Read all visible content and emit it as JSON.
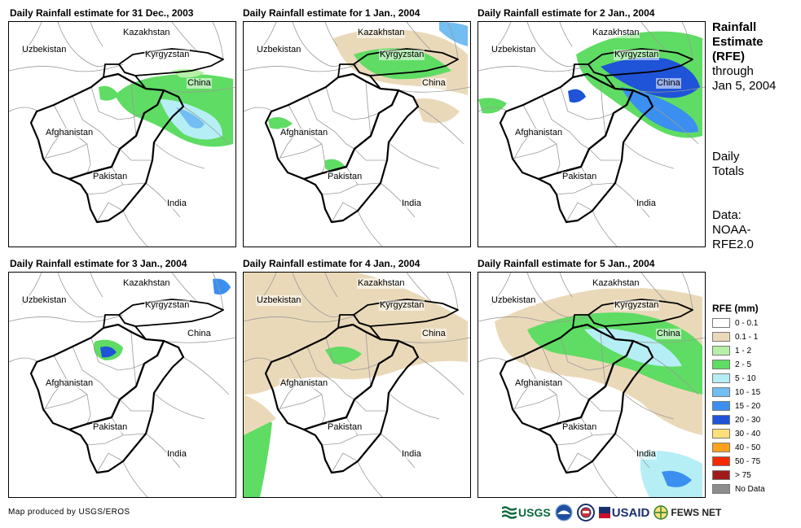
{
  "panels": [
    {
      "title": "Daily Rainfall estimate for 31 Dec., 2003",
      "pattern": 0
    },
    {
      "title": "Daily Rainfall estimate for 1 Jan., 2004",
      "pattern": 1
    },
    {
      "title": "Daily Rainfall estimate for 2 Jan., 2004",
      "pattern": 2
    },
    {
      "title": "Daily Rainfall estimate for 3 Jan., 2004",
      "pattern": 3
    },
    {
      "title": "Daily Rainfall estimate for 4 Jan., 2004",
      "pattern": 4
    },
    {
      "title": "Daily Rainfall estimate for 5 Jan., 2004",
      "pattern": 5
    }
  ],
  "map_labels": {
    "kazakhstan": "Kazakhstan",
    "uzbekistan": "Uzbekistan",
    "kyrgyzstan": "Kyrgyzstan",
    "china": "China",
    "afghanistan": "Afghanistan",
    "pakistan": "Pakistan",
    "india": "India"
  },
  "side": {
    "title_bold": [
      "Rainfall",
      "Estimate",
      "(RFE)"
    ],
    "title_rest": [
      "through",
      "Jan 5, 2004"
    ],
    "daily": [
      "Daily",
      "Totals"
    ],
    "data": [
      "Data:",
      "NOAA-",
      "RFE2.0"
    ]
  },
  "legend": {
    "title": "RFE (mm)",
    "items": [
      {
        "label": "0 - 0.1",
        "color": "#ffffff"
      },
      {
        "label": "0.1 - 1",
        "color": "#ead9b9"
      },
      {
        "label": "1 - 2",
        "color": "#b6f0a8"
      },
      {
        "label": "2 - 5",
        "color": "#5fdc63"
      },
      {
        "label": "5 - 10",
        "color": "#b6eef6"
      },
      {
        "label": "10 - 15",
        "color": "#72bdf2"
      },
      {
        "label": "15 - 20",
        "color": "#3a8ff0"
      },
      {
        "label": "20 - 30",
        "color": "#1f53d8"
      },
      {
        "label": "30 - 40",
        "color": "#fde07a"
      },
      {
        "label": "40 - 50",
        "color": "#fca21c"
      },
      {
        "label": "50 - 75",
        "color": "#f52a00"
      },
      {
        "label": "> 75",
        "color": "#a01a1a"
      },
      {
        "label": "No Data",
        "color": "#8c8c8c"
      }
    ]
  },
  "credit": "Map produced by USGS/EROS",
  "logos": {
    "usgs": "USGS",
    "usaid": "USAID",
    "fewsnet": "FEWS NET"
  }
}
